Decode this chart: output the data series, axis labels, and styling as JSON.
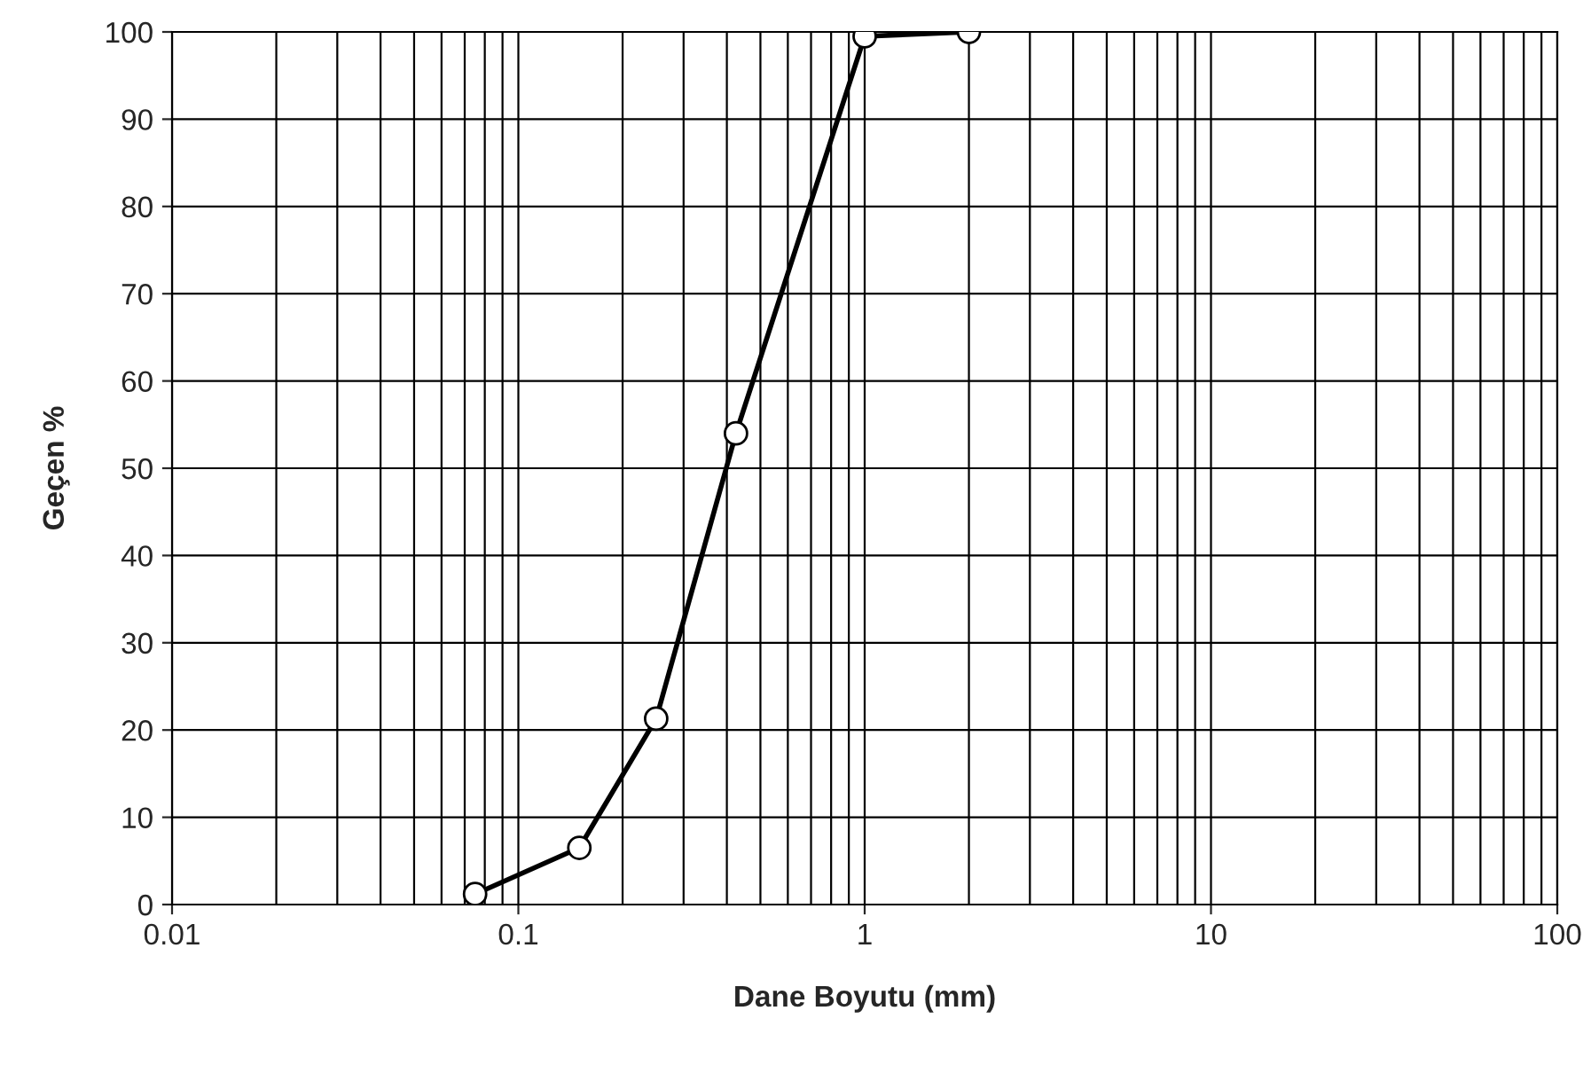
{
  "chart_data": {
    "type": "line",
    "xlabel": "Dane Boyutu (mm)",
    "ylabel": "Geçen %",
    "log": "x",
    "x": [
      0.075,
      0.15,
      0.25,
      0.425,
      1.0,
      2.0
    ],
    "series": [
      {
        "color": "#000000",
        "values": [
          1.2,
          6.5,
          21.3,
          54,
          99.5,
          100
        ]
      }
    ],
    "xlim": [
      0.01,
      100
    ],
    "xticks": [
      0.01,
      0.1,
      1,
      10,
      100
    ],
    "ylim": [
      0,
      100
    ],
    "yticks": [
      0,
      10,
      20,
      30,
      40,
      50,
      60,
      70,
      80,
      90,
      100
    ],
    "grid": true,
    "marker": "circle",
    "line_style": "solid"
  }
}
